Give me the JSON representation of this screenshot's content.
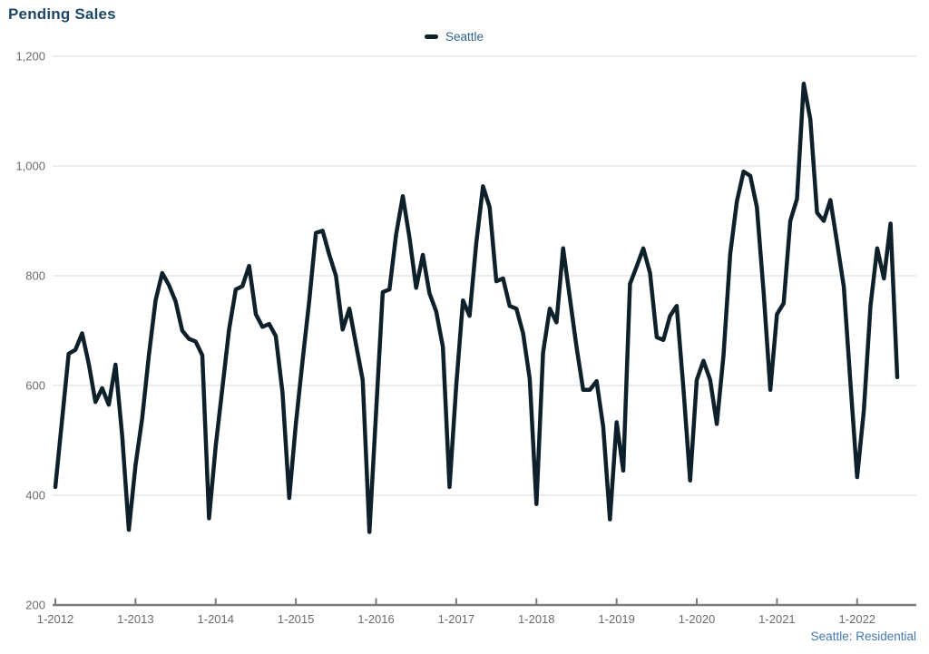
{
  "title": "Pending Sales",
  "legend": {
    "label": "Seattle"
  },
  "footer": "Seattle: Residential",
  "colors": {
    "title": "#1e4766",
    "legend_text": "#2e618e",
    "footer": "#4579b2",
    "line": "#0e2029",
    "grid": "#d8d8d8",
    "axis": "#7b7b7b",
    "tick_label": "#6b6b6b"
  },
  "chart_data": {
    "type": "line",
    "title": "Pending Sales",
    "xlabel": "",
    "ylabel": "",
    "ylim": [
      200,
      1200
    ],
    "y_ticks": [
      200,
      400,
      600,
      800,
      1000,
      1200
    ],
    "y_tick_labels": [
      "200",
      "400",
      "600",
      "800",
      "1,000",
      "1,200"
    ],
    "x_tick_labels": [
      "1-2012",
      "1-2013",
      "1-2014",
      "1-2015",
      "1-2016",
      "1-2017",
      "1-2018",
      "1-2019",
      "1-2020",
      "1-2021",
      "1-2022"
    ],
    "grid": "horizontal",
    "legend_position": "top-center",
    "frequency": "monthly",
    "start_month": "2012-01",
    "end_month": "2022-07",
    "series": [
      {
        "name": "Seattle",
        "values": [
          415,
          537,
          658,
          665,
          695,
          640,
          570,
          595,
          565,
          638,
          508,
          337,
          455,
          540,
          655,
          755,
          805,
          783,
          753,
          700,
          685,
          680,
          655,
          358,
          490,
          595,
          702,
          775,
          781,
          818,
          730,
          707,
          712,
          690,
          587,
          395,
          530,
          645,
          755,
          878,
          882,
          838,
          800,
          702,
          740,
          675,
          610,
          333,
          550,
          770,
          775,
          875,
          945,
          870,
          778,
          838,
          768,
          735,
          670,
          415,
          600,
          755,
          727,
          860,
          963,
          925,
          790,
          795,
          745,
          740,
          695,
          612,
          384,
          660,
          740,
          715,
          850,
          760,
          670,
          592,
          592,
          608,
          525,
          356,
          533,
          445,
          785,
          817,
          850,
          805,
          688,
          683,
          727,
          745,
          595,
          427,
          610,
          645,
          610,
          530,
          655,
          840,
          935,
          990,
          982,
          925,
          770,
          592,
          730,
          750,
          900,
          940,
          1150,
          1085,
          915,
          900,
          938,
          860,
          780,
          605,
          433,
          555,
          745,
          850,
          795,
          895,
          615
        ]
      }
    ]
  }
}
